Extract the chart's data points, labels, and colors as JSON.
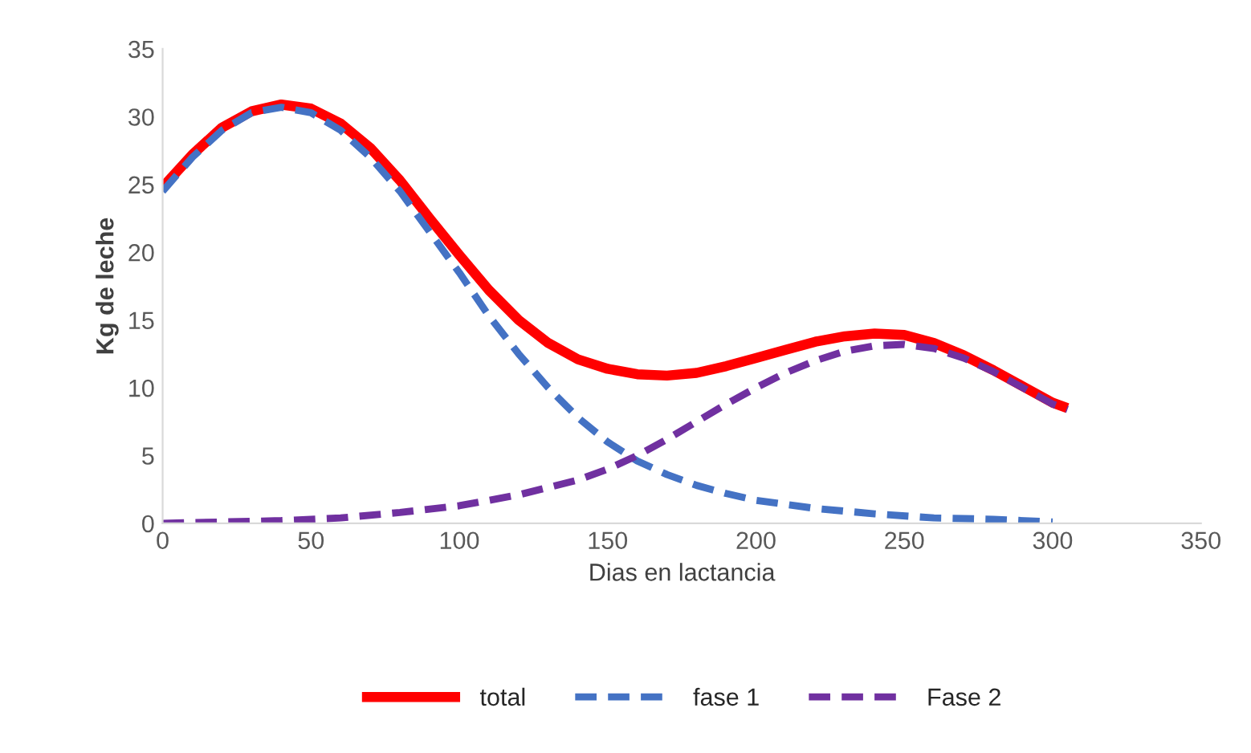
{
  "chart_data": {
    "type": "line",
    "xlabel": "Dias en lactancia",
    "ylabel": "Kg de leche",
    "xlim": [
      0,
      350
    ],
    "xticks": [
      0,
      50,
      100,
      150,
      200,
      250,
      300,
      350
    ],
    "ylim": [
      0,
      35
    ],
    "yticks": [
      0,
      5,
      10,
      15,
      20,
      25,
      30,
      35
    ],
    "grid": false,
    "legend": "bottom",
    "marker": "none",
    "series": [
      {
        "name": "total",
        "color": "#ff0000",
        "line_style": "solid",
        "x": [
          0,
          10,
          20,
          30,
          40,
          50,
          60,
          70,
          80,
          90,
          100,
          110,
          120,
          130,
          140,
          150,
          160,
          170,
          180,
          190,
          200,
          210,
          220,
          230,
          240,
          250,
          260,
          270,
          280,
          290,
          300,
          305
        ],
        "values": [
          24.8,
          27.2,
          29.2,
          30.4,
          30.9,
          30.6,
          29.5,
          27.7,
          25.3,
          22.5,
          19.8,
          17.2,
          15,
          13.3,
          12.1,
          11.4,
          11,
          10.9,
          11.1,
          11.6,
          12.2,
          12.8,
          13.4,
          13.8,
          14,
          13.9,
          13.3,
          12.4,
          11.3,
          10.1,
          8.9,
          8.5
        ]
      },
      {
        "name": "fase 1",
        "color": "#4472c4",
        "line_style": "dashed",
        "x": [
          0,
          10,
          20,
          30,
          40,
          50,
          60,
          70,
          80,
          90,
          100,
          110,
          120,
          130,
          140,
          150,
          160,
          170,
          180,
          190,
          200,
          220,
          240,
          260,
          280,
          300
        ],
        "values": [
          24.5,
          27,
          29,
          30.3,
          30.7,
          30.3,
          29,
          27,
          24.5,
          21.5,
          18.5,
          15.3,
          12.5,
          10,
          7.8,
          6,
          4.6,
          3.6,
          2.8,
          2.2,
          1.7,
          1.1,
          0.7,
          0.4,
          0.3,
          0.1
        ]
      },
      {
        "name": "Fase 2",
        "color": "#7030a0",
        "line_style": "dashed",
        "x": [
          0,
          20,
          40,
          60,
          80,
          100,
          120,
          140,
          150,
          160,
          170,
          180,
          190,
          200,
          210,
          220,
          230,
          240,
          250,
          260,
          270,
          280,
          290,
          300,
          305
        ],
        "values": [
          0,
          0.1,
          0.2,
          0.4,
          0.8,
          1.3,
          2.1,
          3.2,
          4,
          5,
          6.2,
          7.5,
          8.8,
          10,
          11.1,
          12,
          12.7,
          13.1,
          13.2,
          12.9,
          12.2,
          11.2,
          10,
          8.8,
          8.4
        ]
      }
    ]
  }
}
